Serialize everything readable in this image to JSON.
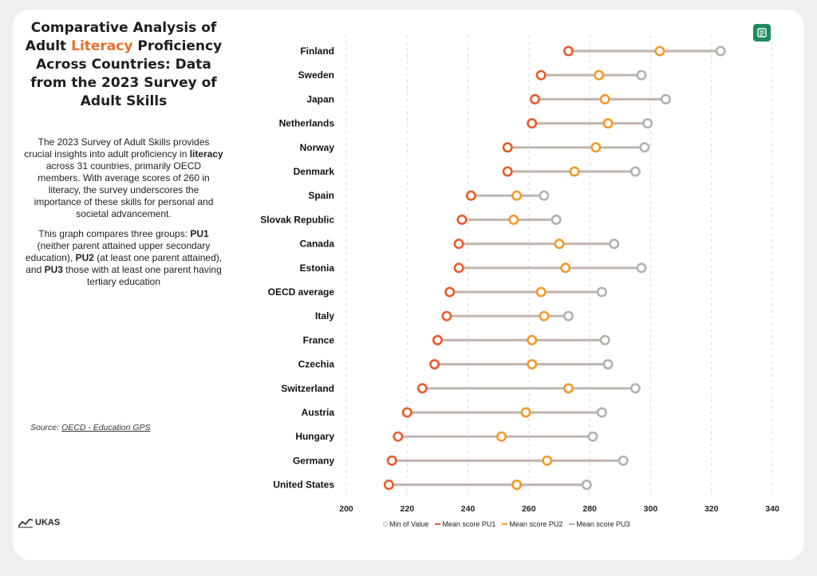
{
  "title": {
    "part1": "Comparative Analysis of Adult ",
    "highlight": "Literacy",
    "part2": " Proficiency Across Countries: Data from the 2023 Survey of Adult Skills"
  },
  "description": {
    "p1_a": "The 2023 Survey of Adult Skills provides crucial insights into adult proficiency in ",
    "p1_bold": "literacy",
    "p1_b": "  across 31 countries, primarily OECD members. With average scores of 260 in literacy, the survey underscores the importance of these skills for personal and societal advancement.",
    "p2_a": "This graph compares three groups: ",
    "p2_pu1": "PU1",
    "p2_b": " (neither parent attained upper secondary education), ",
    "p2_pu2": "PU2",
    "p2_c": " (at least one parent attained), and ",
    "p2_pu3": "PU3",
    "p2_d": " those with at least one parent having tertiary education"
  },
  "source": {
    "label": "Source: ",
    "link_text": "OECD - Education GPS"
  },
  "logo": {
    "text": "UKAS",
    "icon": "trend-line-icon"
  },
  "export_icon": "export-icon",
  "colors": {
    "pu1": "#ec5a2a",
    "pu2": "#f59a26",
    "pu3": "#b2b2b2",
    "connector": "#c2b8b2",
    "grid": "#dddddd",
    "title_highlight": "#e8702a",
    "export_button": "#1f8a5b"
  },
  "chart_data": {
    "type": "dumbbell",
    "title": "",
    "xlabel": "",
    "ylabel": "",
    "xlim": [
      200,
      340
    ],
    "xticks": [
      200,
      220,
      240,
      260,
      280,
      300,
      320,
      340
    ],
    "grid": "vertical dashed",
    "legend_position": "bottom",
    "legend": [
      "Min of Value",
      "Mean score PU1",
      "Mean score PU2",
      "Mean score PU3"
    ],
    "categories": [
      "Finland",
      "Sweden",
      "Japan",
      "Netherlands",
      "Norway",
      "Denmark",
      "Spain",
      "Slovak Republic",
      "Canada",
      "Estonia",
      "OECD average",
      "Italy",
      "France",
      "Czechia",
      "Switzerland",
      "Austria",
      "Hungary",
      "Germany",
      "United States"
    ],
    "series": [
      {
        "name": "Mean score PU1",
        "values": [
          273,
          264,
          262,
          261,
          253,
          253,
          241,
          238,
          237,
          237,
          234,
          233,
          230,
          229,
          225,
          220,
          217,
          215,
          214
        ]
      },
      {
        "name": "Mean score PU2",
        "values": [
          303,
          283,
          285,
          286,
          282,
          275,
          256,
          255,
          270,
          272,
          264,
          265,
          261,
          261,
          273,
          259,
          251,
          266,
          256
        ]
      },
      {
        "name": "Mean score PU3",
        "values": [
          323,
          297,
          305,
          299,
          298,
          295,
          265,
          269,
          288,
          297,
          284,
          273,
          285,
          286,
          295,
          284,
          281,
          291,
          279
        ]
      }
    ]
  }
}
